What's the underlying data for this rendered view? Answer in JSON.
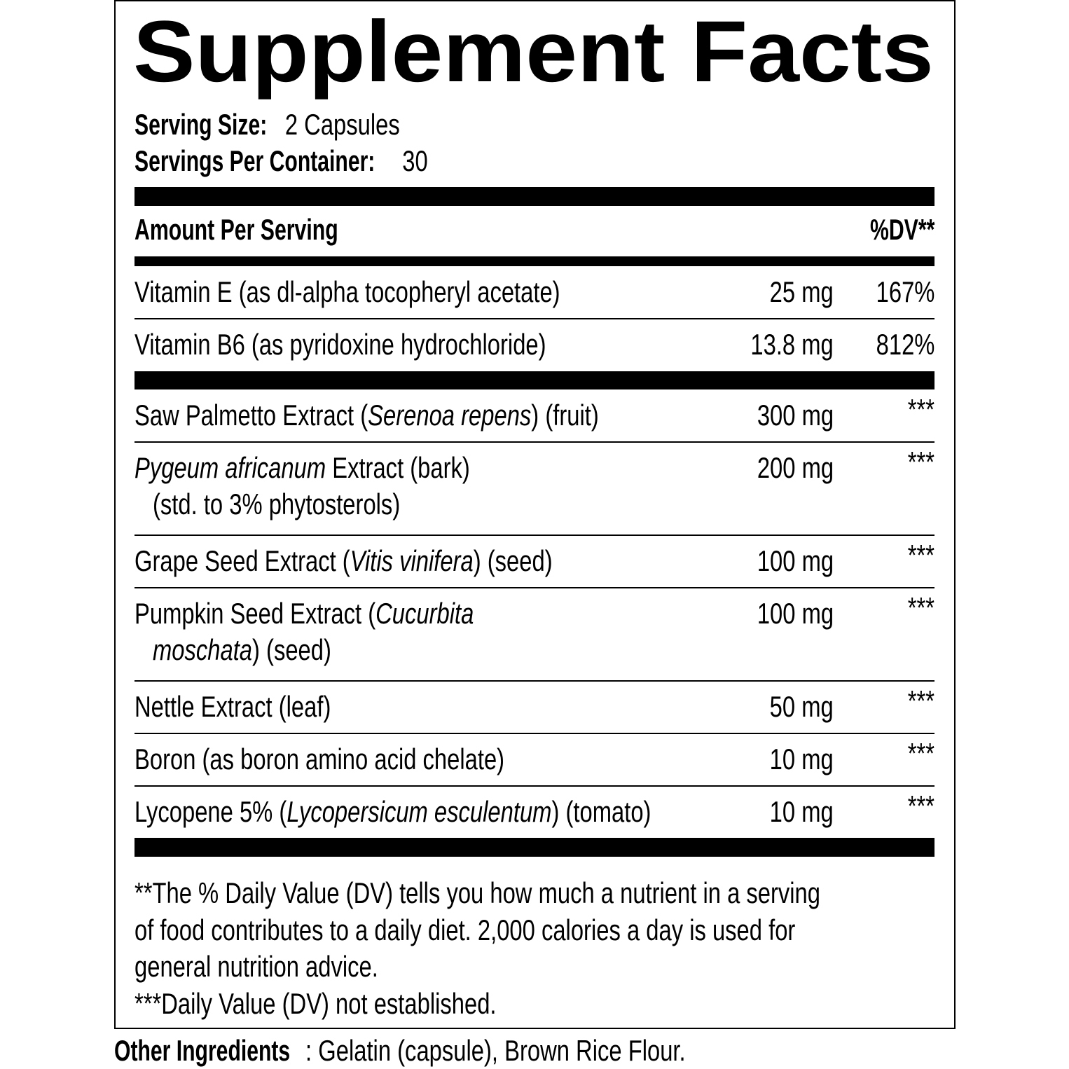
{
  "title": "Supplement Facts",
  "serving_size": {
    "label": "Serving Size:",
    "value": "2 Capsules"
  },
  "servings_per_container": {
    "label": "Servings Per Container:",
    "value": "30"
  },
  "header": {
    "amount": "Amount Per Serving",
    "dv": "%DV**"
  },
  "groups": [
    {
      "rows": [
        {
          "name": [
            [
              {
                "text": "Vitamin E (as dl-alpha tocopheryl acetate)"
              }
            ]
          ],
          "amount": "25 mg",
          "dv": "167%"
        },
        {
          "name": [
            [
              {
                "text": "Vitamin B6 (as pyridoxine hydrochloride)"
              }
            ]
          ],
          "amount": "13.8 mg",
          "dv": "812%"
        }
      ]
    },
    {
      "rows": [
        {
          "name": [
            [
              {
                "text": "Saw Palmetto Extract ("
              },
              {
                "text": "Serenoa repens",
                "italic": true
              },
              {
                "text": ") (fruit)"
              }
            ]
          ],
          "amount": "300 mg",
          "dv": "***"
        },
        {
          "name": [
            [
              {
                "text": "Pygeum africanum",
                "italic": true
              },
              {
                "text": " Extract (bark)"
              }
            ],
            [
              {
                "text": "(std. to 3% phytosterols)"
              }
            ]
          ],
          "amount": "200 mg",
          "dv": "***"
        },
        {
          "name": [
            [
              {
                "text": "Grape Seed Extract ("
              },
              {
                "text": "Vitis vinifera",
                "italic": true
              },
              {
                "text": ") (seed)"
              }
            ]
          ],
          "amount": "100 mg",
          "dv": "***"
        },
        {
          "name": [
            [
              {
                "text": "Pumpkin Seed Extract ("
              },
              {
                "text": "Cucurbita",
                "italic": true
              }
            ],
            [
              {
                "text": "moschata",
                "italic": true
              },
              {
                "text": ") (seed)"
              }
            ]
          ],
          "amount": "100 mg",
          "dv": "***"
        },
        {
          "name": [
            [
              {
                "text": "Nettle Extract (leaf)"
              }
            ]
          ],
          "amount": "50 mg",
          "dv": "***"
        },
        {
          "name": [
            [
              {
                "text": "Boron (as boron amino acid chelate)"
              }
            ]
          ],
          "amount": "10 mg",
          "dv": "***"
        },
        {
          "name": [
            [
              {
                "text": "Lycopene 5% ("
              },
              {
                "text": "Lycopersicum esculentum",
                "italic": true
              },
              {
                "text": ") (tomato)"
              }
            ]
          ],
          "amount": "10 mg",
          "dv": "***"
        }
      ]
    }
  ],
  "footnotes": [
    "**The % Daily Value (DV) tells you how much a nutrient in a serving",
    "of food contributes to a daily diet. 2,000 calories a day is used for",
    "general nutrition advice.",
    "***Daily Value (DV) not established."
  ],
  "other_ingredients": {
    "label": "Other Ingredients",
    "value": ": Gelatin (capsule), Brown Rice Flour."
  }
}
